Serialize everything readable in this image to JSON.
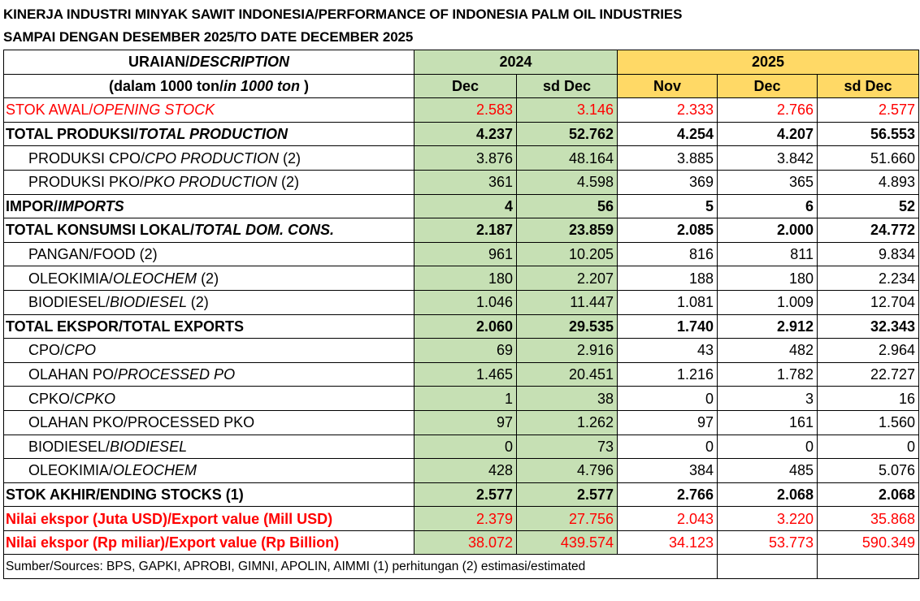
{
  "title_line1": "KINERJA INDUSTRI MINYAK SAWIT INDONESIA/PERFORMANCE OF INDONESIA PALM OIL INDUSTRIES",
  "title_line2": "SAMPAI DENGAN DESEMBER 2025/TO DATE DECEMBER 2025",
  "header": {
    "desc_line1_main": "URAIAN/",
    "desc_line1_italic": "DESCRIPTION",
    "desc_line2_pre": "(dalam 1000 ton/",
    "desc_line2_italic": "in 1000 ton",
    "desc_line2_post": " )",
    "year_2024": "2024",
    "year_2025": "2025",
    "col_2024_dec": "Dec",
    "col_2024_sddec": "sd Dec",
    "col_2025_nov": "Nov",
    "col_2025_dec": "Dec",
    "col_2025_sddec": "sd Dec"
  },
  "rows": [
    {
      "main": "STOK AWAL/",
      "italic": "OPENING STOCK",
      "suffix": "",
      "style": "red",
      "indent": false,
      "v": [
        "2.583",
        "3.146",
        "2.333",
        "2.766",
        "2.577"
      ]
    },
    {
      "main": "TOTAL PRODUKSI/",
      "italic": "TOTAL PRODUCTION",
      "suffix": "",
      "style": "bold",
      "indent": false,
      "v": [
        "4.237",
        "52.762",
        "4.254",
        "4.207",
        "56.553"
      ]
    },
    {
      "main": "PRODUKSI CPO/",
      "italic": "CPO PRODUCTION ",
      "suffix": " (2)",
      "style": "normal",
      "indent": true,
      "v": [
        "3.876",
        "48.164",
        "3.885",
        "3.842",
        "51.660"
      ]
    },
    {
      "main": "PRODUKSI PKO/",
      "italic": "PKO PRODUCTION ",
      "suffix": " (2)",
      "style": "normal",
      "indent": true,
      "v": [
        "361",
        "4.598",
        "369",
        "365",
        "4.893"
      ]
    },
    {
      "main": "IMPOR/",
      "italic": "IMPORTS",
      "suffix": "",
      "style": "bold",
      "indent": false,
      "v": [
        "4",
        "56",
        "5",
        "6",
        "52"
      ]
    },
    {
      "main": "TOTAL KONSUMSI LOKAL/",
      "italic": "TOTAL DOM. CONS.",
      "suffix": "",
      "style": "bold",
      "indent": false,
      "v": [
        "2.187",
        "23.859",
        "2.085",
        "2.000",
        "24.772"
      ]
    },
    {
      "main": "PANGAN/FOOD (2)",
      "italic": "",
      "suffix": "",
      "style": "normal",
      "indent": true,
      "v": [
        "961",
        "10.205",
        "816",
        "811",
        "9.834"
      ]
    },
    {
      "main": "OLEOKIMIA/",
      "italic": "OLEOCHEM ",
      "suffix": " (2)",
      "style": "normal",
      "indent": true,
      "v": [
        "180",
        "2.207",
        "188",
        "180",
        "2.234"
      ]
    },
    {
      "main": "BIODIESEL/",
      "italic": "BIODIESEL ",
      "suffix": " (2)",
      "style": "normal",
      "indent": true,
      "v": [
        "1.046",
        "11.447",
        "1.081",
        "1.009",
        "12.704"
      ]
    },
    {
      "main": "TOTAL EKSPOR/TOTAL EXPORTS",
      "italic": "",
      "suffix": "",
      "style": "bold",
      "indent": false,
      "v": [
        "2.060",
        "29.535",
        "1.740",
        "2.912",
        "32.343"
      ]
    },
    {
      "main": "CPO/",
      "italic": "CPO",
      "suffix": "",
      "style": "normal",
      "indent": true,
      "v": [
        "69",
        "2.916",
        "43",
        "482",
        "2.964"
      ]
    },
    {
      "main": "OLAHAN PO/",
      "italic": "PROCESSED PO",
      "suffix": "",
      "style": "normal",
      "indent": true,
      "v": [
        "1.465",
        "20.451",
        "1.216",
        "1.782",
        "22.727"
      ]
    },
    {
      "main": "CPKO/",
      "italic": "CPKO",
      "suffix": "",
      "style": "normal",
      "indent": true,
      "v": [
        "1",
        "38",
        "0",
        "3",
        "16"
      ]
    },
    {
      "main": "OLAHAN PKO/PROCESSED PKO",
      "italic": "",
      "suffix": "",
      "style": "normal",
      "indent": true,
      "v": [
        "97",
        "1.262",
        "97",
        "161",
        "1.560"
      ]
    },
    {
      "main": "BIODIESEL/",
      "italic": "BIODIESEL",
      "suffix": "",
      "style": "normal",
      "indent": true,
      "v": [
        "0",
        "73",
        "0",
        "0",
        "0"
      ]
    },
    {
      "main": "OLEOKIMIA/",
      "italic": "OLEOCHEM",
      "suffix": "",
      "style": "normal",
      "indent": true,
      "v": [
        "428",
        "4.796",
        "384",
        "485",
        "5.076"
      ]
    },
    {
      "main": "STOK AKHIR/ENDING STOCKS (1)",
      "italic": "",
      "suffix": "",
      "style": "bold",
      "indent": false,
      "v": [
        "2.577",
        "2.577",
        "2.766",
        "2.068",
        "2.068"
      ]
    },
    {
      "main": "Nilai ekspor (Juta USD)/Export value (Mill USD)",
      "italic": "",
      "suffix": "",
      "style": "redb",
      "indent": false,
      "v": [
        "2.379",
        "27.756",
        "2.043",
        "3.220",
        "35.868"
      ]
    },
    {
      "main": "Nilai ekspor (Rp miliar)/Export value (Rp Billion)",
      "italic": "",
      "suffix": "",
      "style": "redb",
      "indent": false,
      "v": [
        "38.072",
        "439.574",
        "34.123",
        "53.773",
        "590.349"
      ]
    }
  ],
  "source": "Sumber/Sources: BPS, GAPKI, APROBI, GIMNI, APOLIN, AIMMI (1) perhitungan (2) estimasi/estimated"
}
